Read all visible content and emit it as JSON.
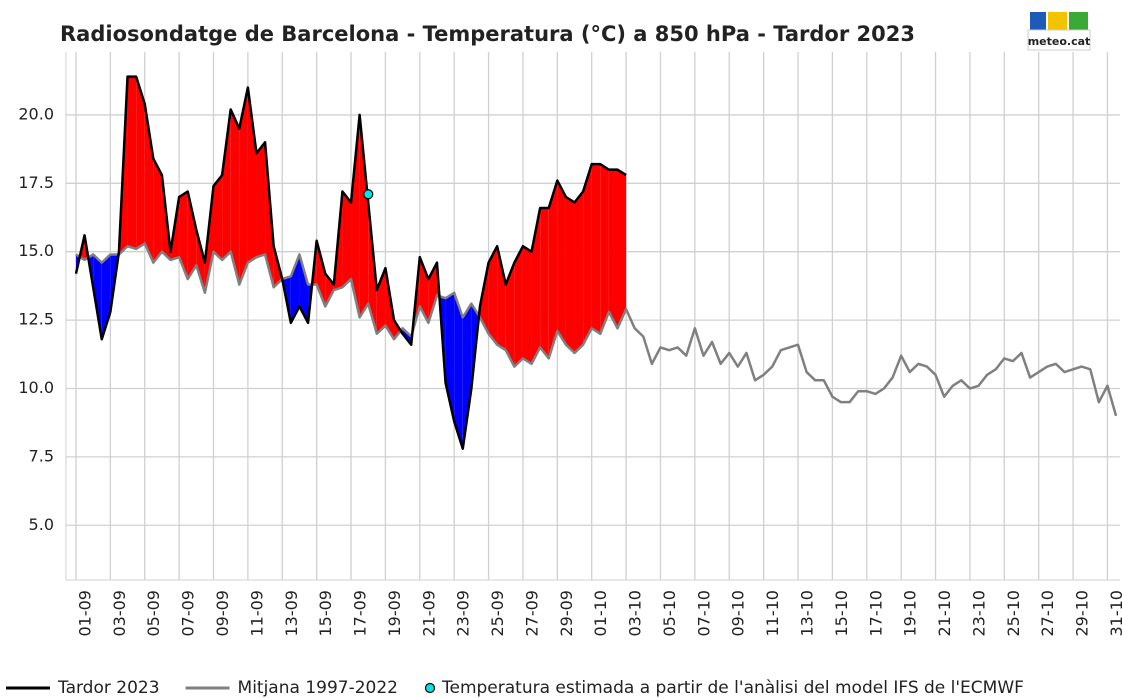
{
  "chart_data": {
    "type": "line",
    "title": "Radiosondatge de Barcelona - Temperatura (°C) a 850 hPa - Tardor 2023",
    "logo_text": "meteo.cat",
    "xlim": [
      -0.58,
      60.73
    ],
    "ylim": [
      3.0,
      22.3
    ],
    "xticks": [
      {
        "value": 0,
        "label": "01-09"
      },
      {
        "value": 2,
        "label": "03-09"
      },
      {
        "value": 4,
        "label": "05-09"
      },
      {
        "value": 6,
        "label": "07-09"
      },
      {
        "value": 8,
        "label": "09-09"
      },
      {
        "value": 10,
        "label": "11-09"
      },
      {
        "value": 12,
        "label": "13-09"
      },
      {
        "value": 14,
        "label": "15-09"
      },
      {
        "value": 16,
        "label": "17-09"
      },
      {
        "value": 18,
        "label": "19-09"
      },
      {
        "value": 20,
        "label": "21-09"
      },
      {
        "value": 22,
        "label": "23-09"
      },
      {
        "value": 24,
        "label": "25-09"
      },
      {
        "value": 26,
        "label": "27-09"
      },
      {
        "value": 28,
        "label": "29-09"
      },
      {
        "value": 30,
        "label": "01-10"
      },
      {
        "value": 32,
        "label": "03-10"
      },
      {
        "value": 34,
        "label": "05-10"
      },
      {
        "value": 36,
        "label": "07-10"
      },
      {
        "value": 38,
        "label": "09-10"
      },
      {
        "value": 40,
        "label": "11-10"
      },
      {
        "value": 42,
        "label": "13-10"
      },
      {
        "value": 44,
        "label": "15-10"
      },
      {
        "value": 46,
        "label": "17-10"
      },
      {
        "value": 48,
        "label": "19-10"
      },
      {
        "value": 50,
        "label": "21-10"
      },
      {
        "value": 52,
        "label": "23-10"
      },
      {
        "value": 54,
        "label": "25-10"
      },
      {
        "value": 56,
        "label": "27-10"
      },
      {
        "value": 58,
        "label": "29-10"
      },
      {
        "value": 60,
        "label": "31-10"
      }
    ],
    "yticks": [
      {
        "value": 5,
        "label": "5.0"
      },
      {
        "value": 7.5,
        "label": "7.5"
      },
      {
        "value": 10,
        "label": "10.0"
      },
      {
        "value": 12.5,
        "label": "12.5"
      },
      {
        "value": 15,
        "label": "15.0"
      },
      {
        "value": 17.5,
        "label": "17.5"
      },
      {
        "value": 20,
        "label": "20.0"
      }
    ],
    "grid": true,
    "legend": "bottom",
    "fill_above": "#ff0000",
    "fill_below": "#0000ff",
    "series": [
      {
        "name": "Tardor 2023",
        "type": "line",
        "color": "#000000",
        "x": [
          0,
          0.5,
          1,
          1.5,
          2,
          2.5,
          3,
          3.5,
          4,
          4.5,
          5,
          5.5,
          6,
          6.5,
          7,
          7.5,
          8,
          8.5,
          9,
          9.5,
          10,
          10.5,
          11,
          11.5,
          12,
          12.5,
          13,
          13.5,
          14,
          14.5,
          15,
          15.5,
          16,
          16.5,
          17,
          17.5,
          18,
          18.5,
          19,
          19.5,
          20,
          20.5,
          21,
          21.5,
          22,
          22.5,
          23,
          23.5,
          24,
          24.5,
          25,
          25.5,
          26,
          26.5,
          27,
          27.5,
          28,
          28.5,
          29,
          29.5,
          30,
          30.5,
          31,
          31.5,
          32
        ],
        "values": [
          14.2,
          15.6,
          13.7,
          11.8,
          12.8,
          15.0,
          21.4,
          21.4,
          20.4,
          18.4,
          17.8,
          15.0,
          17.0,
          17.2,
          15.8,
          14.6,
          17.4,
          17.8,
          20.2,
          19.5,
          21.0,
          18.6,
          19.0,
          15.2,
          14.0,
          12.4,
          13.0,
          12.4,
          15.4,
          14.2,
          13.8,
          17.2,
          16.8,
          20.0,
          16.8,
          13.6,
          14.4,
          12.5,
          12.0,
          11.6,
          14.8,
          14.0,
          14.6,
          10.2,
          8.8,
          7.8,
          10.0,
          13.0,
          14.6,
          15.2,
          13.8,
          14.6,
          15.2,
          15.0,
          16.6,
          16.6,
          17.6,
          17.0,
          16.8,
          17.2,
          18.2,
          18.2,
          18.0,
          18.0,
          17.8
        ]
      },
      {
        "name": "Mitjana 1997-2022",
        "type": "line",
        "color": "#808080",
        "x": [
          0,
          0.5,
          1,
          1.5,
          2,
          2.5,
          3,
          3.5,
          4,
          4.5,
          5,
          5.5,
          6,
          6.5,
          7,
          7.5,
          8,
          8.5,
          9,
          9.5,
          10,
          10.5,
          11,
          11.5,
          12,
          12.5,
          13,
          13.5,
          14,
          14.5,
          15,
          15.5,
          16,
          16.5,
          17,
          17.5,
          18,
          18.5,
          19,
          19.5,
          20,
          20.5,
          21,
          21.5,
          22,
          22.5,
          23,
          23.5,
          24,
          24.5,
          25,
          25.5,
          26,
          26.5,
          27,
          27.5,
          28,
          28.5,
          29,
          29.5,
          30,
          30.5,
          31,
          31.5,
          32,
          32.5,
          33,
          33.5,
          34,
          34.5,
          35,
          35.5,
          36,
          36.5,
          37,
          37.5,
          38,
          38.5,
          39,
          39.5,
          40,
          40.5,
          41,
          41.5,
          42,
          42.5,
          43,
          43.5,
          44,
          44.5,
          45,
          45.5,
          46,
          46.5,
          47,
          47.5,
          48,
          48.5,
          49,
          49.5,
          50,
          50.5,
          51,
          51.5,
          52,
          52.5,
          53,
          53.5,
          54,
          54.5,
          55,
          55.5,
          56,
          56.5,
          57,
          57.5,
          58,
          58.5,
          59,
          59.5,
          60,
          60.5
        ],
        "values": [
          14.9,
          14.7,
          14.9,
          14.6,
          14.9,
          14.9,
          15.2,
          15.1,
          15.3,
          14.6,
          15.0,
          14.7,
          14.8,
          14.0,
          14.5,
          13.5,
          15.0,
          14.7,
          15.0,
          13.8,
          14.6,
          14.8,
          14.9,
          13.7,
          14.0,
          14.1,
          14.9,
          13.8,
          13.8,
          13.0,
          13.6,
          13.7,
          14.0,
          12.6,
          13.1,
          12.0,
          12.3,
          11.8,
          12.2,
          11.9,
          13.0,
          12.4,
          13.4,
          13.3,
          13.5,
          12.6,
          13.1,
          12.6,
          12.0,
          11.6,
          11.4,
          10.8,
          11.1,
          10.9,
          11.5,
          11.1,
          12.1,
          11.6,
          11.3,
          11.6,
          12.2,
          12.0,
          12.8,
          12.2,
          12.9,
          12.2,
          11.9,
          10.9,
          11.5,
          11.4,
          11.5,
          11.2,
          12.2,
          11.2,
          11.7,
          10.9,
          11.3,
          10.8,
          11.3,
          10.3,
          10.5,
          10.8,
          11.4,
          11.5,
          11.6,
          10.6,
          10.3,
          10.3,
          9.7,
          9.5,
          9.5,
          9.9,
          9.9,
          9.8,
          10.0,
          10.4,
          11.2,
          10.6,
          10.9,
          10.8,
          10.5,
          9.7,
          10.1,
          10.3,
          10.0,
          10.1,
          10.5,
          10.7,
          11.1,
          11.0,
          11.3,
          10.4,
          10.6,
          10.8,
          10.9,
          10.6,
          10.7,
          10.8,
          10.7,
          9.5,
          10.1,
          9.0
        ]
      },
      {
        "name": "Temperatura estimada a partir de l'anàlisi del model IFS de l'ECMWF",
        "type": "scatter",
        "color": "#00e5e5",
        "x": [
          17
        ],
        "values": [
          17.1
        ]
      }
    ]
  }
}
